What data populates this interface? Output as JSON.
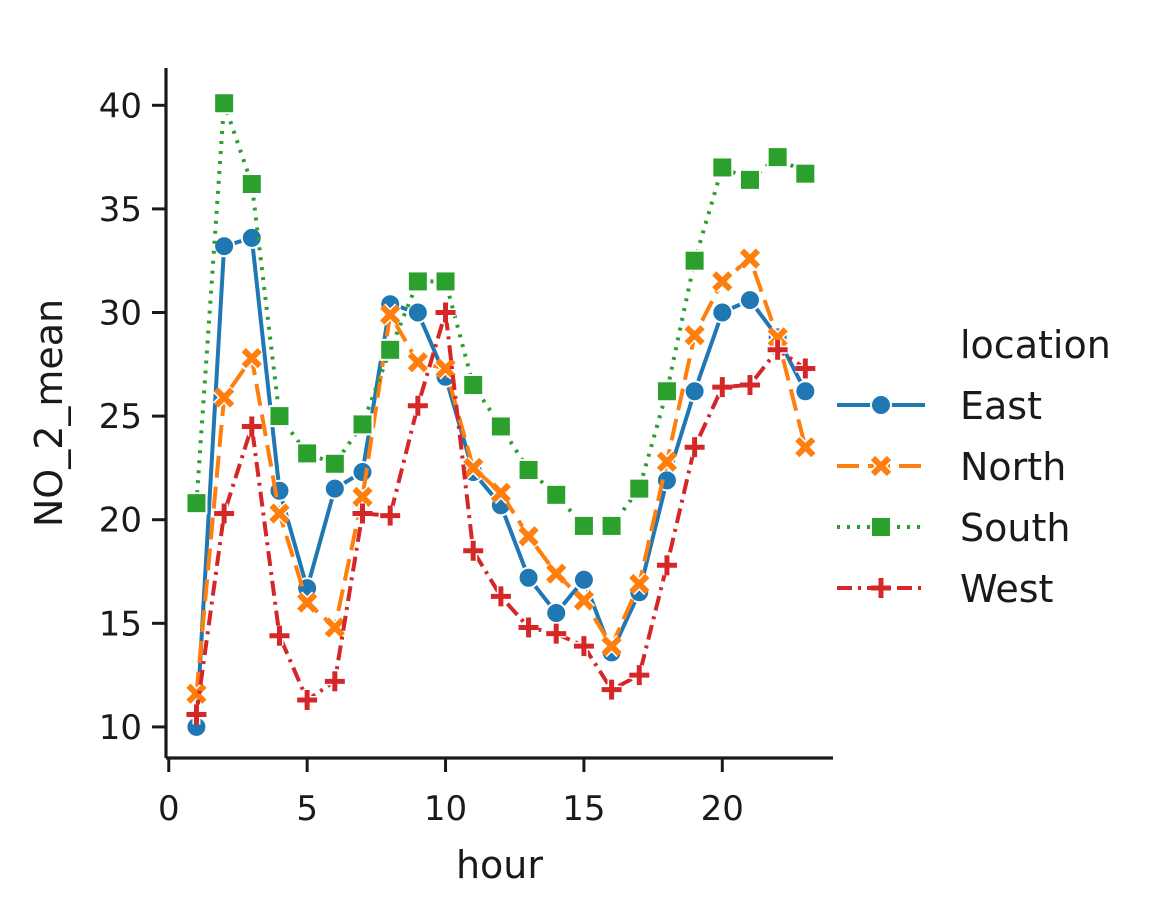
{
  "chart_data": {
    "type": "line",
    "xlabel": "hour",
    "ylabel": "NO_2_mean",
    "xlim": [
      -0.1,
      24
    ],
    "ylim": [
      8.5,
      41.8
    ],
    "xticks": [
      0,
      5,
      10,
      15,
      20
    ],
    "yticks": [
      10,
      15,
      20,
      25,
      30,
      35,
      40
    ],
    "grid": false,
    "legend": {
      "title": "location",
      "placement": "right"
    },
    "series": [
      {
        "name": "East",
        "color": "#1f77b4",
        "linestyle": "solid",
        "marker": "circle",
        "x": [
          1,
          2,
          3,
          4,
          5,
          6,
          7,
          8,
          9,
          10,
          11,
          12,
          13,
          14,
          15,
          16,
          17,
          18,
          19,
          20,
          21,
          22,
          23
        ],
        "values": [
          10.0,
          33.2,
          33.6,
          21.4,
          16.7,
          21.5,
          22.3,
          30.4,
          30.0,
          26.9,
          22.3,
          20.7,
          17.2,
          15.5,
          17.1,
          13.6,
          16.5,
          21.9,
          26.2,
          30.0,
          30.6,
          28.8,
          26.2
        ]
      },
      {
        "name": "North",
        "color": "#ff7f0e",
        "linestyle": "dashed",
        "marker": "x",
        "x": [
          1,
          2,
          3,
          4,
          5,
          6,
          7,
          8,
          9,
          10,
          11,
          12,
          13,
          14,
          15,
          16,
          17,
          18,
          19,
          20,
          21,
          22,
          23
        ],
        "values": [
          11.6,
          25.9,
          27.8,
          20.3,
          16.0,
          14.8,
          21.1,
          29.9,
          27.6,
          27.3,
          22.5,
          21.3,
          19.2,
          17.4,
          16.1,
          13.9,
          16.9,
          22.8,
          28.9,
          31.5,
          32.6,
          28.8,
          23.5
        ]
      },
      {
        "name": "South",
        "color": "#2ca02c",
        "linestyle": "dotted",
        "marker": "square",
        "x": [
          1,
          2,
          3,
          4,
          5,
          6,
          7,
          8,
          9,
          10,
          11,
          12,
          13,
          14,
          15,
          16,
          17,
          18,
          19,
          20,
          21,
          22,
          23
        ],
        "values": [
          20.8,
          40.1,
          36.2,
          25.0,
          23.2,
          22.7,
          24.6,
          28.2,
          31.5,
          31.5,
          26.5,
          24.5,
          22.4,
          21.2,
          19.7,
          19.7,
          21.5,
          26.2,
          32.5,
          37.0,
          36.4,
          37.5,
          36.7
        ]
      },
      {
        "name": "West",
        "color": "#d62728",
        "linestyle": "dashdot",
        "marker": "plus",
        "x": [
          1,
          2,
          3,
          4,
          5,
          6,
          7,
          8,
          9,
          10,
          11,
          12,
          13,
          14,
          15,
          16,
          17,
          18,
          19,
          20,
          21,
          22,
          23
        ],
        "values": [
          10.6,
          20.3,
          24.5,
          14.4,
          11.3,
          12.2,
          20.3,
          20.2,
          25.5,
          30.0,
          18.5,
          16.3,
          14.8,
          14.5,
          13.9,
          11.8,
          12.5,
          17.8,
          23.5,
          26.4,
          26.5,
          28.2,
          27.3
        ]
      }
    ]
  }
}
